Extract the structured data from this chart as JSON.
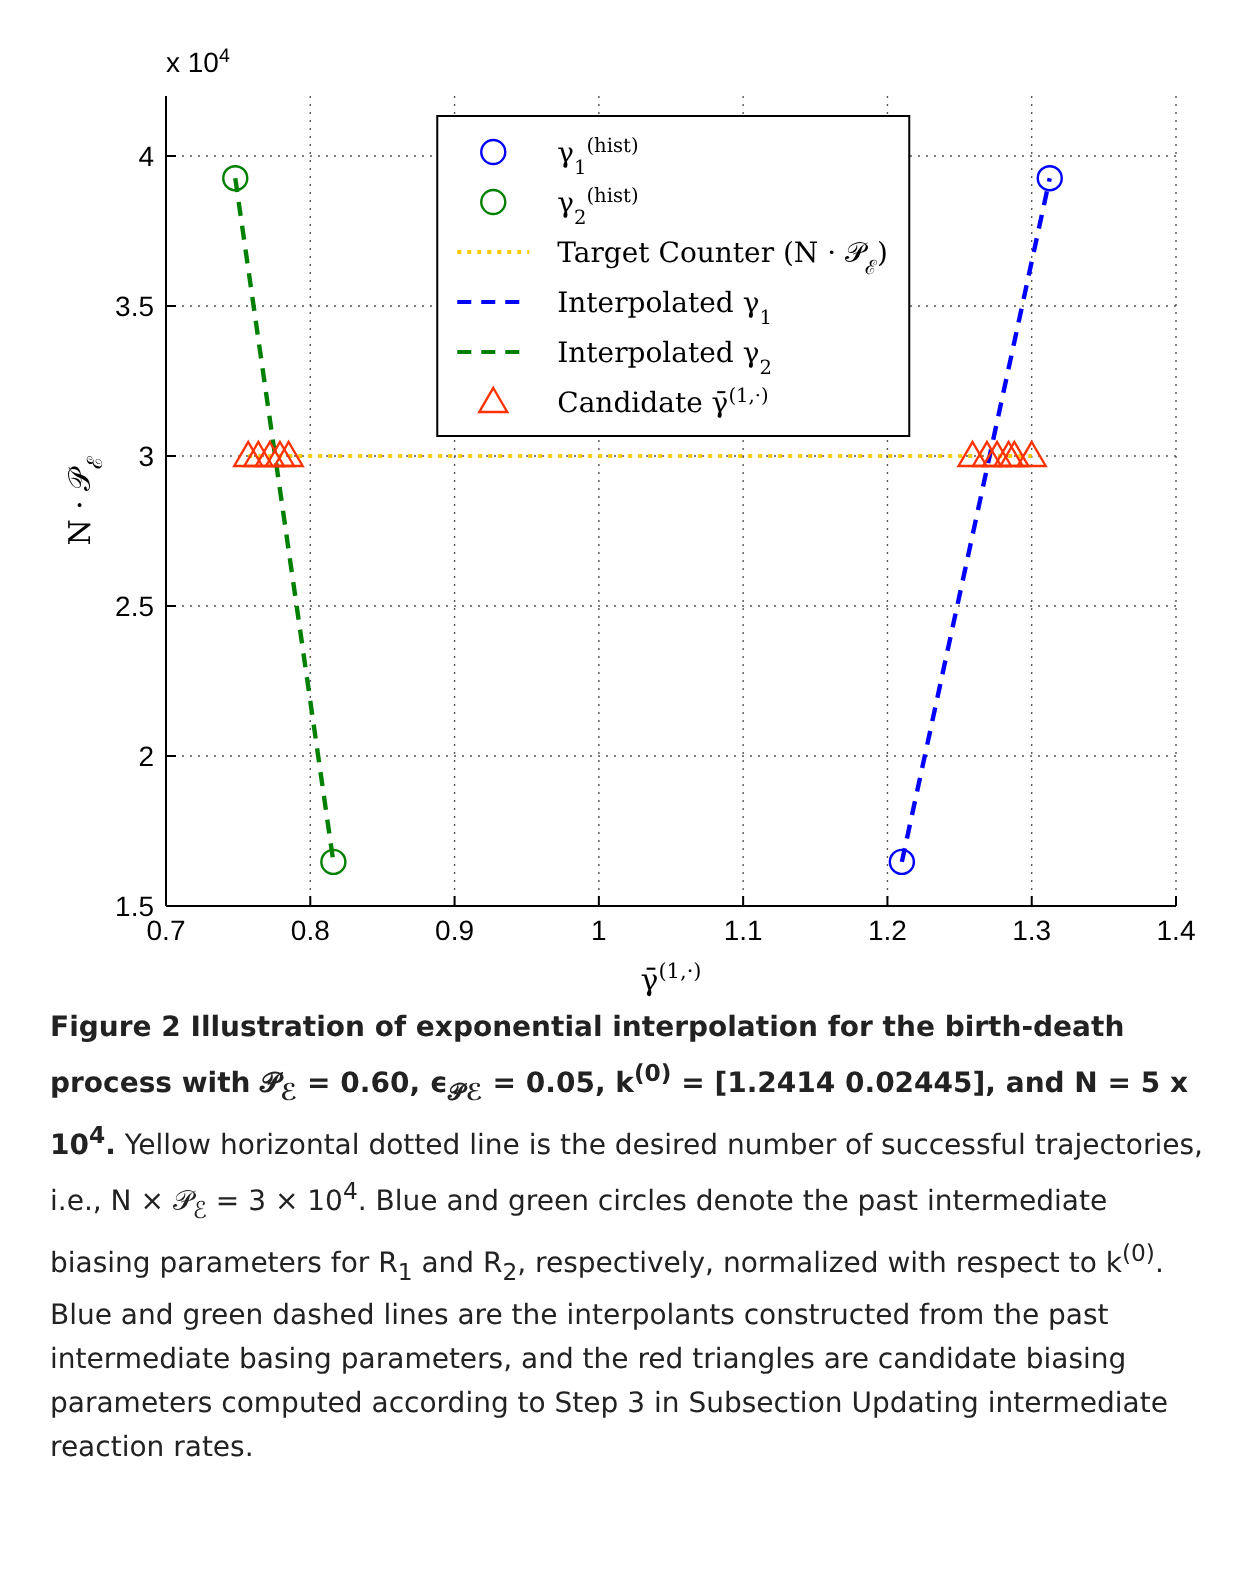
{
  "chart_data": {
    "type": "scatter",
    "xlabel": "γ̄$^{(1,·)}$",
    "ylabel": "N · 𝒫$_{ℰ}$",
    "xlim": [
      0.7,
      1.4
    ],
    "xticks": [
      0.7,
      0.8,
      0.9,
      1,
      1.1,
      1.2,
      1.3,
      1.4
    ],
    "ylim": [
      1.5,
      4.2
    ],
    "yticks": [
      1.5,
      2,
      2.5,
      3,
      3.5,
      4
    ],
    "grid": true,
    "legend": "top",
    "series": [
      {
        "name": "γ$_{1}$$^{(hist)}$",
        "marker": "circle",
        "color": "#0000ff",
        "x": [
          1.21,
          1.3125
        ],
        "values": [
          1.647,
          3.926
        ]
      },
      {
        "name": "γ$_{2}$$^{(hist)}$",
        "marker": "circle",
        "color": "#008000",
        "x": [
          0.748,
          0.816
        ],
        "values": [
          3.926,
          1.647
        ]
      },
      {
        "name": "Target Counter (N · 𝒫$_{ℰ}$)",
        "type": "line",
        "line_style": "dotted",
        "marker": "none",
        "color": "#ffcc00",
        "x": [
          0.757,
          1.3
        ],
        "values": [
          3,
          3
        ]
      },
      {
        "name": "Interpolated γ$_{1}$",
        "type": "line",
        "line_style": "dashed",
        "marker": "none",
        "color": "#0000ff",
        "x": [
          1.21,
          1.3125
        ],
        "values": [
          1.647,
          3.926
        ]
      },
      {
        "name": "Interpolated γ$_{2}$",
        "type": "line",
        "line_style": "dashed",
        "marker": "none",
        "color": "#008000",
        "x": [
          0.748,
          0.816
        ],
        "values": [
          3.926,
          1.647
        ]
      },
      {
        "name": "Candidate γ̄$^{(1,·)}$",
        "marker": "triangle",
        "color": "#ff3300",
        "x": [
          0.757,
          0.764,
          0.772,
          0.779,
          0.785,
          1.259,
          1.269,
          1.276,
          1.284,
          1.288,
          1.3
        ],
        "values": [
          3,
          3,
          3,
          3,
          3,
          3,
          3,
          3,
          3,
          3,
          3
        ]
      }
    ],
    "annotations": [
      "x 10$^{4}$",
      "Figure 2 Illustration of exponential interpolation for the birth-death process with 𝒫$_{ℰ}$ = 0.60, ϵ$_{𝒫ℰ}$ = 0.05, k$^{(0)}$ = [1.2414 0.02445], and N = 5 x 10$^{4}$.",
      "Yellow horizontal dotted line is the desired number of successful trajectories, i.e., N × 𝒫$_{ℰ}$ = 3 × 10$^{4}$. Blue and green circles denote the past intermediate biasing parameters for R$_{1}$ and R$_{2}$, respectively, normalized with respect to k$^{(0)}$. Blue and green dashed lines are the interpolants constructed from the past intermediate basing parameters, and the red triangles are candidate biasing parameters computed according to Step 3 in Subsection Updating intermediate reaction rates."
    ]
  }
}
